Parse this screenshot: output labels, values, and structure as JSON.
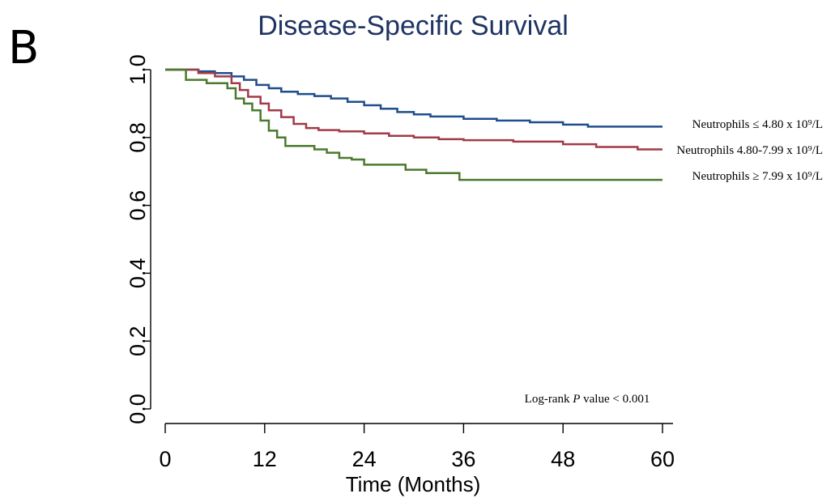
{
  "panel_label": "B",
  "chart_data": {
    "type": "line",
    "title": "Disease-Specific Survival",
    "xlabel": "Time (Months)",
    "ylabel": "",
    "xlim": [
      0,
      60
    ],
    "ylim": [
      0,
      1
    ],
    "x_ticks": [
      {
        "value": 0,
        "label": "0"
      },
      {
        "value": 12,
        "label": "12"
      },
      {
        "value": 24,
        "label": "24"
      },
      {
        "value": 36,
        "label": "36"
      },
      {
        "value": 48,
        "label": "48"
      },
      {
        "value": 60,
        "label": "60"
      }
    ],
    "y_ticks": [
      {
        "value": 0,
        "label": "0.0"
      },
      {
        "value": 0.2,
        "label": "0.2"
      },
      {
        "value": 0.4,
        "label": "0.4"
      },
      {
        "value": 0.6,
        "label": "0.6"
      },
      {
        "value": 0.8,
        "label": "0.8"
      },
      {
        "value": 1,
        "label": "1.0"
      }
    ],
    "grid": false,
    "legend_placement": "right",
    "step": true,
    "series": [
      {
        "name": "Neutrophils ≤ 4.80 x 10⁹/L",
        "color": "#1f4e8c",
        "points": [
          [
            0,
            1.0
          ],
          [
            2,
            1.0
          ],
          [
            4,
            0.995
          ],
          [
            6,
            0.99
          ],
          [
            8,
            0.98
          ],
          [
            9.5,
            0.97
          ],
          [
            11,
            0.955
          ],
          [
            12.5,
            0.945
          ],
          [
            14,
            0.935
          ],
          [
            16,
            0.928
          ],
          [
            18,
            0.922
          ],
          [
            20,
            0.915
          ],
          [
            22,
            0.905
          ],
          [
            24,
            0.895
          ],
          [
            26,
            0.885
          ],
          [
            28,
            0.875
          ],
          [
            30,
            0.868
          ],
          [
            32,
            0.862
          ],
          [
            36,
            0.855
          ],
          [
            40,
            0.85
          ],
          [
            44,
            0.845
          ],
          [
            48,
            0.838
          ],
          [
            51,
            0.832
          ],
          [
            60,
            0.832
          ]
        ]
      },
      {
        "name": "Neutrophils 4.80-7.99 x 10⁹/L",
        "color": "#a23a47",
        "points": [
          [
            0,
            1.0
          ],
          [
            2,
            1.0
          ],
          [
            4,
            0.99
          ],
          [
            6,
            0.98
          ],
          [
            8,
            0.96
          ],
          [
            9,
            0.94
          ],
          [
            10,
            0.92
          ],
          [
            11.5,
            0.9
          ],
          [
            12.5,
            0.88
          ],
          [
            14,
            0.86
          ],
          [
            15.5,
            0.84
          ],
          [
            17,
            0.828
          ],
          [
            18.5,
            0.822
          ],
          [
            21,
            0.818
          ],
          [
            24,
            0.812
          ],
          [
            27,
            0.805
          ],
          [
            30,
            0.8
          ],
          [
            33,
            0.795
          ],
          [
            36,
            0.792
          ],
          [
            42,
            0.788
          ],
          [
            48,
            0.78
          ],
          [
            52,
            0.772
          ],
          [
            57,
            0.765
          ],
          [
            60,
            0.765
          ]
        ]
      },
      {
        "name": "Neutrophils ≥ 7.99 x 10⁹/L",
        "color": "#4a7a2e",
        "points": [
          [
            0,
            1.0
          ],
          [
            2,
            1.0
          ],
          [
            2.5,
            0.97
          ],
          [
            5,
            0.96
          ],
          [
            7.5,
            0.945
          ],
          [
            8.5,
            0.915
          ],
          [
            9.5,
            0.9
          ],
          [
            10.5,
            0.88
          ],
          [
            11.5,
            0.85
          ],
          [
            12.5,
            0.82
          ],
          [
            13.5,
            0.8
          ],
          [
            14.5,
            0.775
          ],
          [
            17,
            0.775
          ],
          [
            18,
            0.765
          ],
          [
            19.5,
            0.755
          ],
          [
            21,
            0.74
          ],
          [
            22.5,
            0.735
          ],
          [
            24,
            0.72
          ],
          [
            28,
            0.72
          ],
          [
            29,
            0.705
          ],
          [
            31,
            0.705
          ],
          [
            31.5,
            0.695
          ],
          [
            35,
            0.695
          ],
          [
            35.5,
            0.675
          ],
          [
            60,
            0.675
          ]
        ]
      }
    ],
    "annotation": "Log-rank P value < 0.001"
  }
}
